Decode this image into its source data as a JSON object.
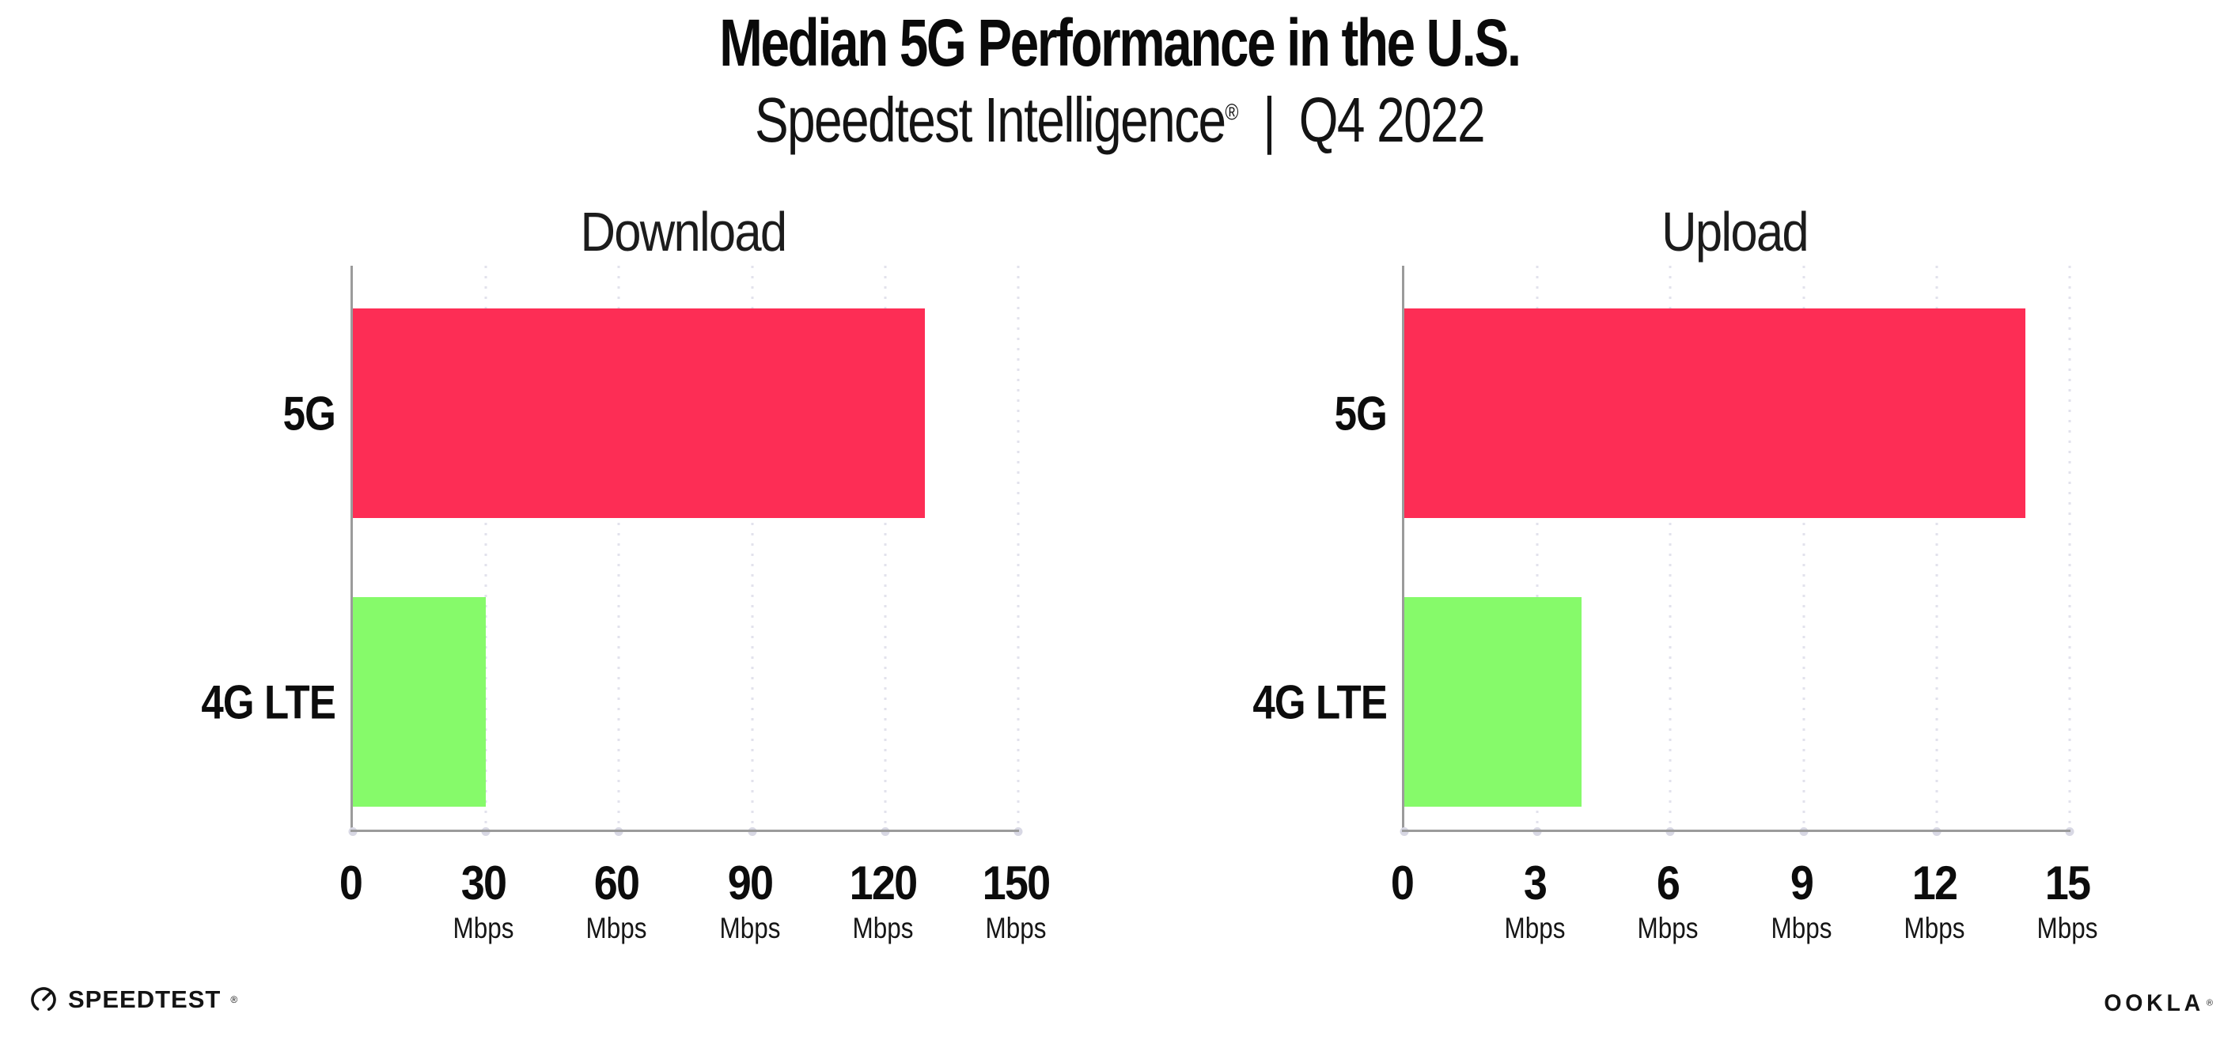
{
  "header": {
    "title": "Median 5G Performance in the U.S.",
    "subtitle": {
      "brand": "Speedtest Intelligence",
      "registered": "®",
      "separator": "|",
      "period": "Q4 2022"
    }
  },
  "chart_data": [
    {
      "type": "bar",
      "orientation": "horizontal",
      "title": "Download",
      "categories": [
        "5G",
        "4G LTE"
      ],
      "values": [
        129,
        30
      ],
      "unit": "Mbps",
      "xlabel": "",
      "ylabel": "",
      "xlim": [
        0,
        150
      ],
      "ticks": [
        0,
        30,
        60,
        90,
        120,
        150
      ],
      "bar_colors": [
        "#fd2d55",
        "#86fa6a"
      ],
      "grid": "vertical-dotted",
      "legend": "none"
    },
    {
      "type": "bar",
      "orientation": "horizontal",
      "title": "Upload",
      "categories": [
        "5G",
        "4G LTE"
      ],
      "values": [
        14,
        4
      ],
      "unit": "Mbps",
      "xlabel": "",
      "ylabel": "",
      "xlim": [
        0,
        15
      ],
      "ticks": [
        0,
        3,
        6,
        9,
        12,
        15
      ],
      "bar_colors": [
        "#fd2d55",
        "#86fa6a"
      ],
      "grid": "vertical-dotted",
      "legend": "none"
    }
  ],
  "colors": {
    "bar_5g": "#fd2d55",
    "bar_4g_lte": "#86fa6a",
    "axis_line": "#9b9b9b",
    "gridline_dots": "#e2e2ec",
    "text": "#111111",
    "background": "#ffffff"
  },
  "footer": {
    "speedtest": {
      "icon": "speedtest-gauge-icon",
      "label": "SPEEDTEST",
      "mark": "®"
    },
    "ookla": {
      "label": "OOKLA",
      "mark": "®"
    }
  }
}
